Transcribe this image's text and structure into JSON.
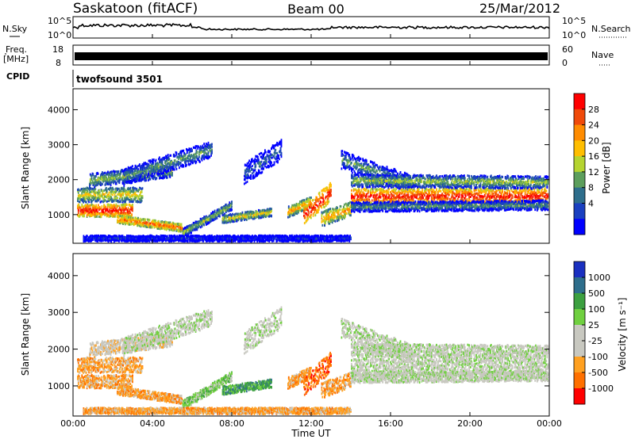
{
  "header": {
    "station": "Saskatoon (fitACF)",
    "beam": "Beam 00",
    "date": "25/Mar/2012"
  },
  "panels": {
    "nsky": {
      "label": "N.Sky",
      "ticks": [
        "10^5",
        "10^0"
      ],
      "right_label": "N.Search",
      "right_ticks": [
        "10^5",
        "10^0"
      ]
    },
    "freq": {
      "label_line1": "Freq.",
      "label_line2": "[MHz]",
      "ticks": [
        "18",
        "8"
      ],
      "right_label": "Nave",
      "right_ticks": [
        "60",
        "0"
      ]
    },
    "cpid": {
      "label": "CPID",
      "value": "twofsound 3501"
    }
  },
  "chart_data": [
    {
      "type": "heatmap",
      "name": "power",
      "ylabel": "Slant Range [km]",
      "ylim": [
        180,
        4600
      ],
      "yticks": [
        1000,
        2000,
        3000,
        4000
      ],
      "colorbar": {
        "label": "Power [dB]",
        "ticks": [
          "28",
          "24",
          "20",
          "16",
          "12",
          "8",
          "4"
        ],
        "colors": [
          "#ff0000",
          "#f04a0a",
          "#ff8c00",
          "#ffbe00",
          "#b5d430",
          "#5c9e5c",
          "#2e6e8c",
          "#1a40c0",
          "#0000ff"
        ]
      }
    },
    {
      "type": "heatmap",
      "name": "velocity",
      "ylabel": "Slant Range [km]",
      "ylim": [
        180,
        4600
      ],
      "yticks": [
        1000,
        2000,
        3000,
        4000
      ],
      "colorbar": {
        "label": "Velocity [m s⁻¹]",
        "ticks": [
          "1000",
          "500",
          "100",
          "25",
          "-25",
          "-100",
          "-500",
          "-1000"
        ],
        "colors": [
          "#1a30c0",
          "#2e6e8c",
          "#3ca040",
          "#70d040",
          "#c8c8c0",
          "#c8c8c0",
          "#ffa020",
          "#ff7000",
          "#ff0000"
        ]
      }
    }
  ],
  "xaxis": {
    "label": "Time UT",
    "ticks": [
      "00:00",
      "04:00",
      "08:00",
      "12:00",
      "16:00",
      "20:00",
      "00:00"
    ]
  }
}
